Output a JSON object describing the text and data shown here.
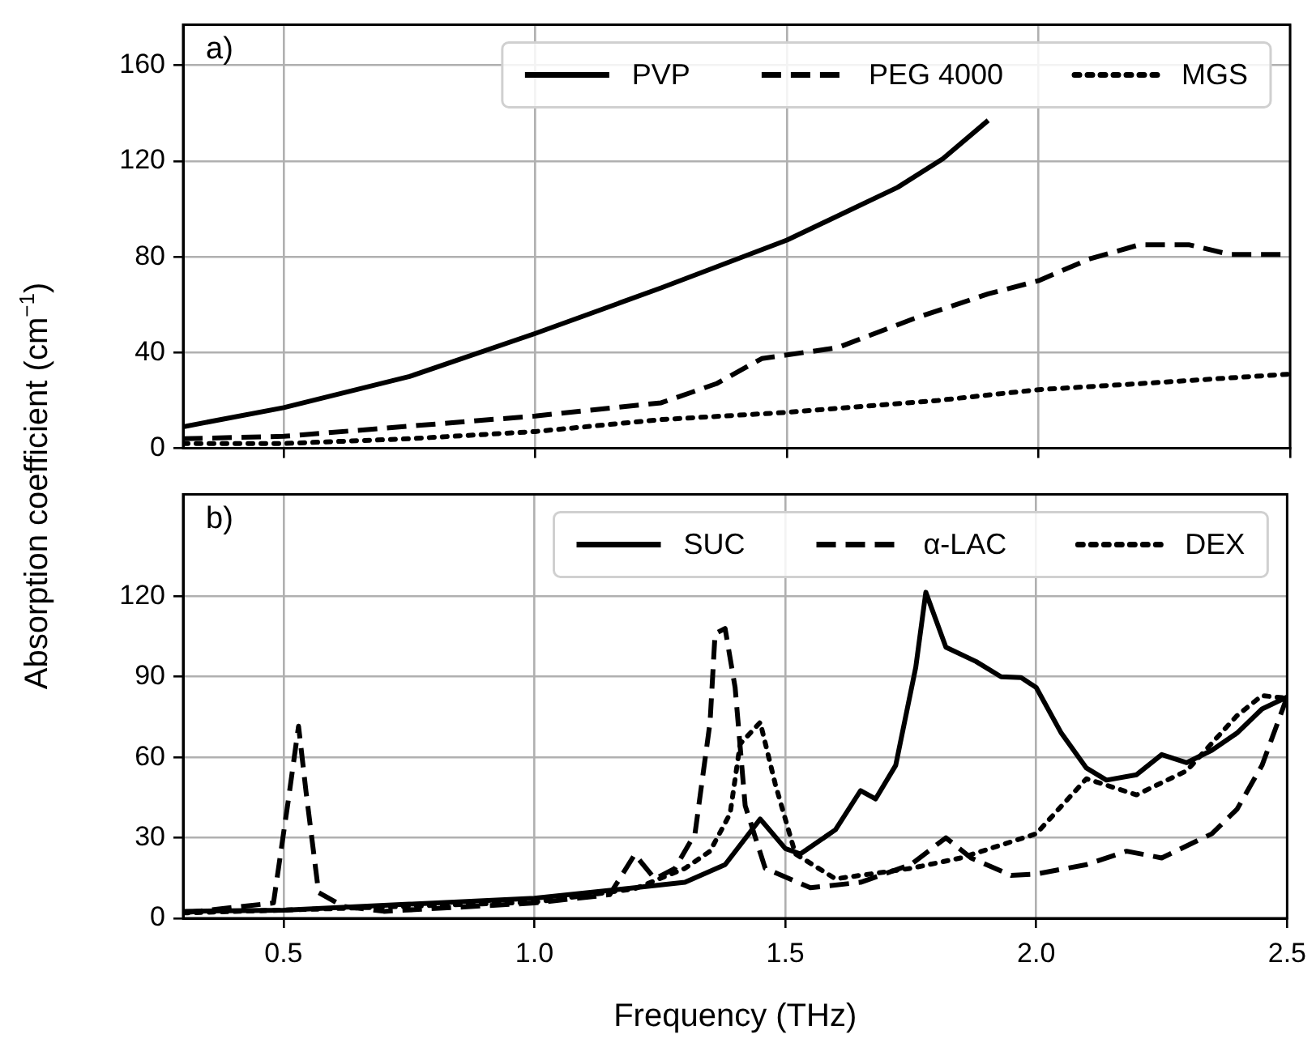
{
  "chart_data": [
    {
      "type": "line",
      "ylabel": "Absorption coefficient (cm$^{−1}$)",
      "annotations": [
        "a)"
      ],
      "xlim": [
        0.3,
        2.5
      ],
      "xticks": [
        0.5,
        1,
        1.5,
        2,
        2.5
      ],
      "ylim": [
        0,
        177
      ],
      "yticks": [
        0,
        40,
        80,
        120,
        160
      ],
      "tick_labels": "y",
      "grid": true,
      "legend": "top right",
      "marker": "none",
      "series": [
        {
          "name": "PVP",
          "color": "#000000",
          "line_style": "solid",
          "x": [
            0.3,
            0.5,
            0.75,
            1.0,
            1.25,
            1.5,
            1.72,
            1.81,
            1.9
          ],
          "values": [
            9,
            17,
            30,
            48,
            67,
            87,
            109,
            121,
            137
          ]
        },
        {
          "name": "PEG 4000",
          "color": "#000000",
          "line_style": "dashed",
          "x": [
            0.3,
            0.5,
            1.0,
            1.25,
            1.36,
            1.45,
            1.5,
            1.6,
            1.75,
            1.9,
            2.0,
            2.1,
            2.2,
            2.3,
            2.38,
            2.5
          ],
          "values": [
            4,
            5,
            13.5,
            19,
            27,
            37.5,
            39,
            42,
            54,
            64.5,
            70,
            79,
            85,
            85,
            81,
            81
          ]
        },
        {
          "name": "MGS",
          "color": "#000000",
          "line_style": "dotted",
          "x": [
            0.3,
            0.5,
            0.75,
            1.0,
            1.25,
            1.5,
            1.8,
            2.0,
            2.2,
            2.5
          ],
          "values": [
            2,
            2,
            4,
            7,
            12,
            15,
            20,
            24.5,
            27,
            31
          ]
        }
      ]
    },
    {
      "type": "line",
      "xlabel": "Frequency (THz)",
      "annotations": [
        "b)"
      ],
      "xlim": [
        0.3,
        2.5
      ],
      "xticks": [
        0.5,
        {
          "value": 1,
          "label": "1.0"
        },
        1.5,
        {
          "value": 2,
          "label": "2.0"
        },
        2.5
      ],
      "ylim": [
        0,
        158
      ],
      "yticks": [
        0,
        30,
        60,
        90,
        120
      ],
      "grid": true,
      "legend": "top right",
      "marker": "none",
      "series": [
        {
          "name": "SUC",
          "color": "#000000",
          "line_style": "solid",
          "x": [
            0.3,
            0.5,
            1.0,
            1.2,
            1.3,
            1.38,
            1.45,
            1.5,
            1.53,
            1.6,
            1.65,
            1.68,
            1.72,
            1.76,
            1.78,
            1.82,
            1.88,
            1.93,
            1.97,
            2.0,
            2.05,
            2.1,
            2.14,
            2.2,
            2.25,
            2.3,
            2.35,
            2.4,
            2.45,
            2.5
          ],
          "values": [
            2.6,
            3,
            7.5,
            11.4,
            13.4,
            20,
            37,
            26,
            24,
            33,
            47.6,
            44.5,
            57,
            93.6,
            121.5,
            101,
            95.7,
            90,
            89.7,
            86,
            69,
            56,
            51.5,
            53.5,
            61,
            58,
            62.6,
            69,
            78,
            82.5
          ]
        },
        {
          "name": "α-LAC",
          "color": "#000000",
          "line_style": "dashed",
          "x": [
            0.3,
            0.48,
            0.51,
            0.53,
            0.545,
            0.57,
            0.62,
            0.7,
            1.0,
            1.15,
            1.2,
            1.24,
            1.28,
            1.32,
            1.35,
            1.36,
            1.38,
            1.4,
            1.42,
            1.46,
            1.55,
            1.65,
            1.75,
            1.82,
            1.87,
            1.95,
            2.0,
            2.1,
            2.18,
            2.25,
            2.35,
            2.4,
            2.45,
            2.5
          ],
          "values": [
            2,
            5.7,
            44.5,
            71.6,
            47,
            9.6,
            4.4,
            2.6,
            5.7,
            8.8,
            23.8,
            14.7,
            18.6,
            31.5,
            73,
            106,
            108,
            86,
            42,
            18.6,
            11.4,
            13.4,
            20,
            30,
            22.5,
            16,
            16.5,
            20,
            25,
            22.5,
            31.5,
            40.6,
            57,
            82.5
          ]
        },
        {
          "name": "DEX",
          "color": "#000000",
          "line_style": "dotted",
          "x": [
            0.3,
            0.6,
            1.0,
            1.2,
            1.3,
            1.35,
            1.39,
            1.41,
            1.45,
            1.48,
            1.52,
            1.6,
            1.75,
            1.85,
            2.0,
            2.1,
            2.2,
            2.3,
            2.4,
            2.45,
            2.5
          ],
          "values": [
            2,
            3.6,
            6,
            11,
            18.6,
            25,
            39,
            65,
            73,
            50,
            24,
            14.7,
            18.6,
            22.5,
            31.5,
            52,
            46,
            55,
            75.5,
            83,
            82
          ]
        }
      ]
    }
  ]
}
